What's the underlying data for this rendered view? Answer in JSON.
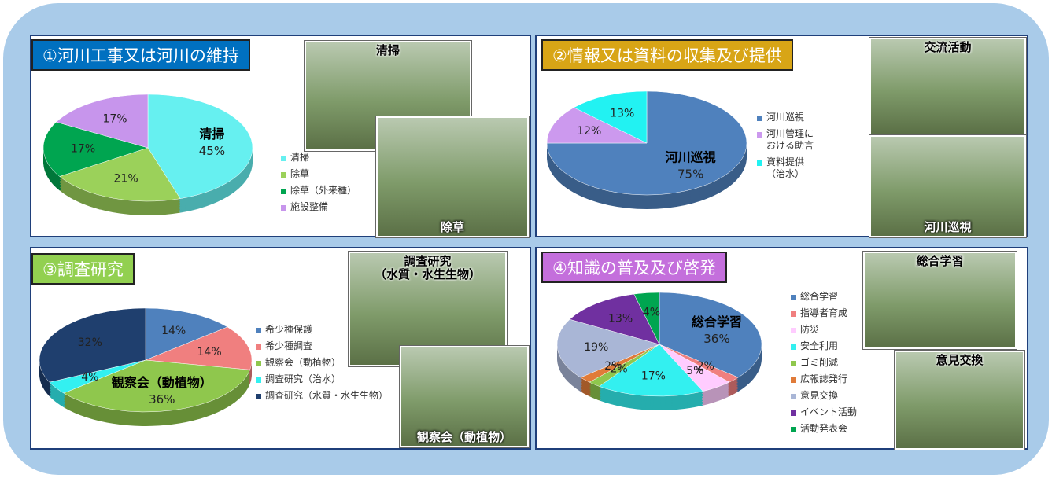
{
  "chart_data": [
    {
      "type": "pie",
      "title": "①河川工事又は河川の維持",
      "title_color": "#0070c0",
      "categories": [
        "清掃",
        "除草",
        "除草（外来種）",
        "施設整備"
      ],
      "values": [
        45,
        21,
        17,
        17
      ],
      "value_labels": [
        "45%",
        "21%",
        "17%",
        "17%"
      ],
      "colors": [
        "#66f0f0",
        "#9bd15a",
        "#00a550",
        "#c795ec"
      ],
      "photo_captions": [
        "清掃",
        "除草"
      ]
    },
    {
      "type": "pie",
      "title": "②情報又は資料の収集及び提供",
      "title_color": "#d8a516",
      "categories": [
        "河川巡視",
        "河川管理に\nおける助言",
        "資料提供\n（治水）"
      ],
      "values": [
        75,
        12,
        13
      ],
      "value_labels": [
        "75%",
        "12%",
        "13%"
      ],
      "colors": [
        "#4f81bd",
        "#cc99ee",
        "#22f2f2"
      ],
      "photo_captions": [
        "交流活動",
        "河川巡視"
      ]
    },
    {
      "type": "pie",
      "title": "③調査研究",
      "title_color": "#92d050",
      "categories": [
        "希少種保護",
        "希少種調査",
        "観察会（動植物）",
        "調査研究（治水）",
        "調査研究（水質・水生生物）"
      ],
      "values": [
        14,
        14,
        36,
        4,
        32
      ],
      "value_labels": [
        "14%",
        "14%",
        "36%",
        "4%",
        "32%"
      ],
      "colors": [
        "#4f81bd",
        "#f07f7f",
        "#8fc74d",
        "#33f0f0",
        "#1f3f6e"
      ],
      "photo_captions": [
        "調査研究\n（水質・水生生物）",
        "観察会（動植物）"
      ]
    },
    {
      "type": "pie",
      "title": "④知識の普及及び啓発",
      "title_color": "#c46fdc",
      "categories": [
        "総合学習",
        "指導者育成",
        "防災",
        "安全利用",
        "ゴミ削減",
        "広報誌発行",
        "意見交換",
        "イベント活動",
        "活動発表会"
      ],
      "values": [
        36,
        2,
        5,
        17,
        2,
        2,
        19,
        13,
        4
      ],
      "value_labels": [
        "36%",
        "2%",
        "5%",
        "17%",
        "2%",
        "2%",
        "19%",
        "13%",
        "4%"
      ],
      "colors": [
        "#4f81bd",
        "#f07f7f",
        "#ffccff",
        "#33f0f0",
        "#8fc74d",
        "#e07b39",
        "#a9b6d6",
        "#7030a0",
        "#00a550"
      ],
      "photo_captions": [
        "総合学習",
        "意見交換"
      ]
    }
  ]
}
